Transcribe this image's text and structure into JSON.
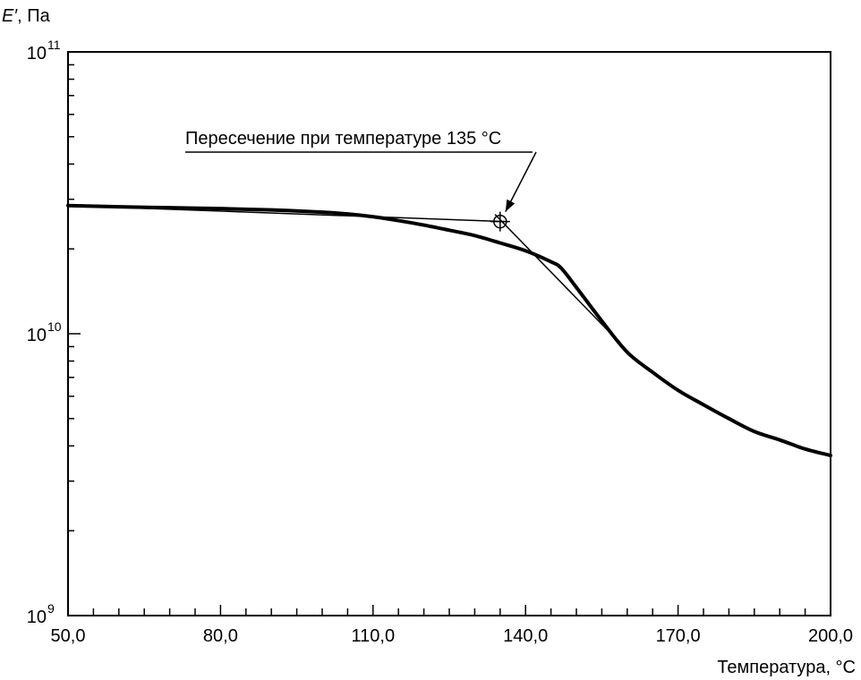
{
  "chart_data": {
    "type": "line",
    "ylabel_symbol": "E′",
    "ylabel_rest": ", Па",
    "xlabel": "Температура, °C",
    "annotation": "Пересечение при температуре 135 °C",
    "annotation_x": 135,
    "annotation_y": 25000000000,
    "xlim": [
      50,
      200
    ],
    "ylim": [
      1000000000,
      100000000000
    ],
    "yscale": "log",
    "x_tick_labels": [
      "50,0",
      "80,0",
      "110,0",
      "140,0",
      "170,0",
      "200,0"
    ],
    "x_tick_values": [
      50,
      80,
      110,
      140,
      170,
      200
    ],
    "y_tick_labels": [
      {
        "base": "10",
        "exp": "9",
        "value": 1000000000
      },
      {
        "base": "10",
        "exp": "10",
        "value": 10000000000
      },
      {
        "base": "10",
        "exp": "11",
        "value": 100000000000
      }
    ],
    "grid": false,
    "series": [
      {
        "x": [
          50,
          60,
          70,
          80,
          90,
          100,
          105,
          110,
          115,
          120,
          125,
          130,
          135,
          140,
          145,
          147,
          150,
          155,
          160,
          165,
          170,
          175,
          180,
          185,
          190,
          195,
          200
        ],
        "y": [
          28500000000,
          28200000000,
          28000000000,
          27800000000,
          27500000000,
          27000000000,
          26600000000,
          26000000000,
          25200000000,
          24300000000,
          23300000000,
          22300000000,
          21000000000,
          19700000000,
          18000000000,
          17100000000,
          14600000000,
          11100000000,
          8600000000,
          7300000000,
          6300000000,
          5600000000,
          5000000000,
          4500000000,
          4200000000,
          3900000000,
          3700000000
        ]
      }
    ],
    "tangent_lines": [
      {
        "x": [
          50,
          136
        ],
        "y": [
          28500000000,
          25000000000
        ]
      },
      {
        "x": [
          134,
          158
        ],
        "y": [
          26500000000,
          9500000000
        ]
      }
    ]
  }
}
